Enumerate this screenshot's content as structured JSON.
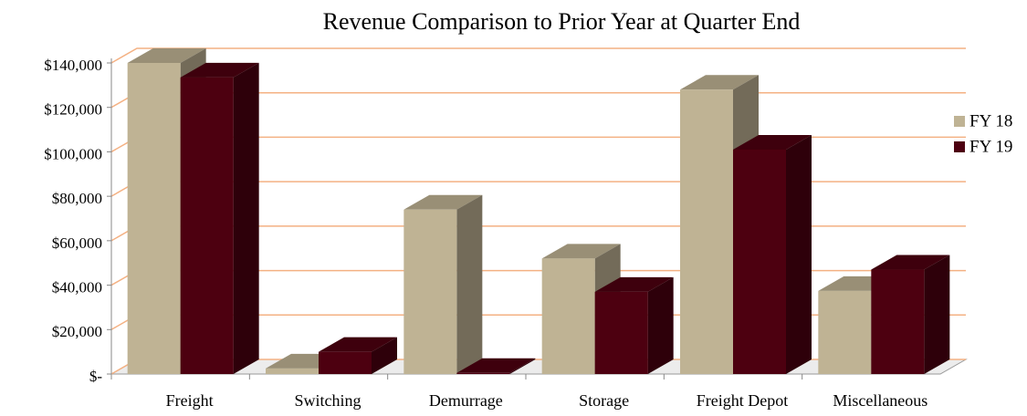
{
  "chart_data": {
    "type": "bar3d",
    "title": "Revenue Comparison to Prior Year at Quarter End",
    "categories": [
      "Freight",
      "Switching",
      "Demurrage",
      "Storage",
      "Freight Depot",
      "Miscellaneous"
    ],
    "series": [
      {
        "name": "FY 18",
        "color": "#bfb394",
        "values": [
          140000,
          2500,
          74000,
          52000,
          128000,
          37400
        ]
      },
      {
        "name": "FY 19",
        "color": "#4d0010",
        "values": [
          133500,
          10000,
          500,
          37000,
          101000,
          47000
        ]
      }
    ],
    "ylim": [
      0,
      140000
    ],
    "yticks": [
      {
        "value": 0,
        "label": "$-"
      },
      {
        "value": 20000,
        "label": "$20,000"
      },
      {
        "value": 40000,
        "label": "$40,000"
      },
      {
        "value": 60000,
        "label": "$60,000"
      },
      {
        "value": 80000,
        "label": "$80,000"
      },
      {
        "value": 100000,
        "label": "$100,000"
      },
      {
        "value": 120000,
        "label": "$120,000"
      },
      {
        "value": 140000,
        "label": "$140,000"
      }
    ],
    "grid": true,
    "grid_color": "#f4b183",
    "legend": "right"
  }
}
